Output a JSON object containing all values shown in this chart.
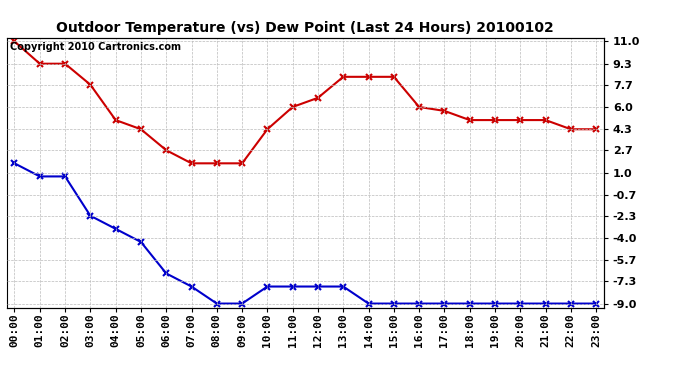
{
  "title": "Outdoor Temperature (vs) Dew Point (Last 24 Hours) 20100102",
  "copyright_text": "Copyright 2010 Cartronics.com",
  "x_labels": [
    "00:00",
    "01:00",
    "02:00",
    "03:00",
    "04:00",
    "05:00",
    "06:00",
    "07:00",
    "08:00",
    "09:00",
    "10:00",
    "11:00",
    "12:00",
    "13:00",
    "14:00",
    "15:00",
    "16:00",
    "17:00",
    "18:00",
    "19:00",
    "20:00",
    "21:00",
    "22:00",
    "23:00"
  ],
  "temp_data": [
    11.0,
    9.3,
    9.3,
    7.7,
    5.0,
    4.3,
    2.7,
    1.7,
    1.7,
    1.7,
    4.3,
    6.0,
    6.7,
    8.3,
    8.3,
    8.3,
    6.0,
    5.7,
    5.0,
    5.0,
    5.0,
    5.0,
    4.3,
    4.3
  ],
  "dew_data": [
    1.7,
    0.7,
    0.7,
    -2.3,
    -3.3,
    -4.3,
    -6.7,
    -7.7,
    -9.0,
    -9.0,
    -7.7,
    -7.7,
    -7.7,
    -7.7,
    -9.0,
    -9.0,
    -9.0,
    -9.0,
    -9.0,
    -9.0,
    -9.0,
    -9.0,
    -9.0,
    -9.0
  ],
  "temp_color": "#cc0000",
  "dew_color": "#0000cc",
  "background_color": "#ffffff",
  "grid_color": "#bbbbbb",
  "yticks": [
    11.0,
    9.3,
    7.7,
    6.0,
    4.3,
    2.7,
    1.0,
    -0.7,
    -2.3,
    -4.0,
    -5.7,
    -7.3,
    -9.0
  ],
  "line_width": 1.5,
  "marker": "x",
  "marker_size": 4,
  "marker_edge_width": 1.5,
  "title_fontsize": 10,
  "tick_fontsize": 8,
  "copyright_fontsize": 7
}
